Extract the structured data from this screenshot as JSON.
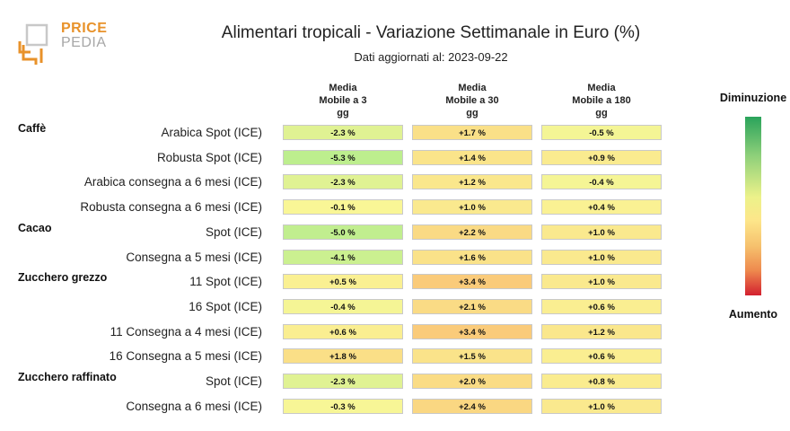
{
  "logo": {
    "line1": "PRICE",
    "line2": "PEDIA"
  },
  "chart_data": {
    "type": "table",
    "title": "Alimentari tropicali - Variazione Settimanale in Euro (%)",
    "subtitle": "Dati aggiornati al: 2023-09-22",
    "columns": [
      "Media\nMobile a 3\ngg",
      "Media\nMobile a 30\ngg",
      "Media\nMobile a 180\ngg"
    ],
    "legend": {
      "top": "Diminuzione",
      "bottom": "Aumento"
    },
    "color_scale": {
      "decrease": "#2aa35b",
      "neutral": "#ecf28a",
      "increase": "#d3202f"
    },
    "rows": [
      {
        "group": "Caffè",
        "label": "Arabica Spot (ICE)",
        "values": [
          -2.3,
          1.7,
          -0.5
        ],
        "text": [
          "-2.3 %",
          "+1.7 %",
          "-0.5 %"
        ]
      },
      {
        "group": "",
        "label": "Robusta Spot (ICE)",
        "values": [
          -5.3,
          1.4,
          0.9
        ],
        "text": [
          "-5.3 %",
          "+1.4 %",
          "+0.9 %"
        ]
      },
      {
        "group": "",
        "label": "Arabica consegna a 6 mesi (ICE)",
        "values": [
          -2.3,
          1.2,
          -0.4
        ],
        "text": [
          "-2.3 %",
          "+1.2 %",
          "-0.4 %"
        ]
      },
      {
        "group": "",
        "label": "Robusta consegna a 6 mesi (ICE)",
        "values": [
          -0.1,
          1.0,
          0.4
        ],
        "text": [
          "-0.1 %",
          "+1.0 %",
          "+0.4 %"
        ]
      },
      {
        "group": "Cacao",
        "label": "Spot (ICE)",
        "values": [
          -5.0,
          2.2,
          1.0
        ],
        "text": [
          "-5.0 %",
          "+2.2 %",
          "+1.0 %"
        ]
      },
      {
        "group": "",
        "label": "Consegna a 5 mesi (ICE)",
        "values": [
          -4.1,
          1.6,
          1.0
        ],
        "text": [
          "-4.1 %",
          "+1.6 %",
          "+1.0 %"
        ]
      },
      {
        "group": "Zucchero grezzo",
        "label": "11 Spot (ICE)",
        "values": [
          0.5,
          3.4,
          1.0
        ],
        "text": [
          "+0.5 %",
          "+3.4 %",
          "+1.0 %"
        ]
      },
      {
        "group": "",
        "label": "16 Spot (ICE)",
        "values": [
          -0.4,
          2.1,
          0.6
        ],
        "text": [
          "-0.4 %",
          "+2.1 %",
          "+0.6 %"
        ]
      },
      {
        "group": "",
        "label": "11 Consegna a 4 mesi (ICE)",
        "values": [
          0.6,
          3.4,
          1.2
        ],
        "text": [
          "+0.6 %",
          "+3.4 %",
          "+1.2 %"
        ]
      },
      {
        "group": "",
        "label": "16 Consegna a 5 mesi (ICE)",
        "values": [
          1.8,
          1.5,
          0.6
        ],
        "text": [
          "+1.8 %",
          "+1.5 %",
          "+0.6 %"
        ]
      },
      {
        "group": "Zucchero raffinato",
        "label": "Spot (ICE)",
        "values": [
          -2.3,
          2.0,
          0.8
        ],
        "text": [
          "-2.3 %",
          "+2.0 %",
          "+0.8 %"
        ]
      },
      {
        "group": "",
        "label": "Consegna a 6 mesi (ICE)",
        "values": [
          -0.3,
          2.4,
          1.0
        ],
        "text": [
          "-0.3 %",
          "+2.4 %",
          "+1.0 %"
        ]
      }
    ]
  }
}
